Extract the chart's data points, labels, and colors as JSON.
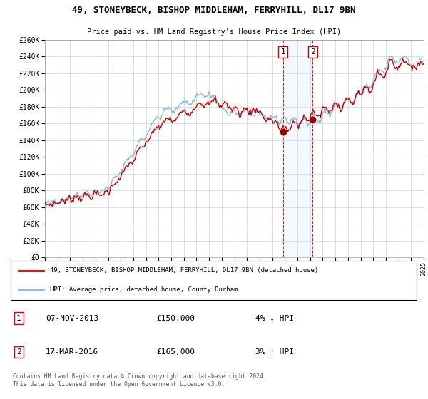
{
  "title": "49, STONEYBECK, BISHOP MIDDLEHAM, FERRYHILL, DL17 9BN",
  "subtitle": "Price paid vs. HM Land Registry's House Price Index (HPI)",
  "legend_line1": "49, STONEYBECK, BISHOP MIDDLEHAM, FERRYHILL, DL17 9BN (detached house)",
  "legend_line2": "HPI: Average price, detached house, County Durham",
  "footer": "Contains HM Land Registry data © Crown copyright and database right 2024.\nThis data is licensed under the Open Government Licence v3.0.",
  "sale1_date": "07-NOV-2013",
  "sale1_price": 150000,
  "sale1_pct": "4% ↓ HPI",
  "sale2_date": "17-MAR-2016",
  "sale2_price": 165000,
  "sale2_pct": "3% ↑ HPI",
  "sale1_x": 2013.85,
  "sale2_x": 2016.21,
  "ylim": [
    0,
    260000
  ],
  "xlim_start": 1995,
  "xlim_end": 2025,
  "red_color": "#cc0000",
  "blue_color": "#88bbdd",
  "shade_color": "#ddeeff",
  "grid_color": "#cccccc",
  "bg_color": "#ffffff",
  "dot_color": "#990000"
}
